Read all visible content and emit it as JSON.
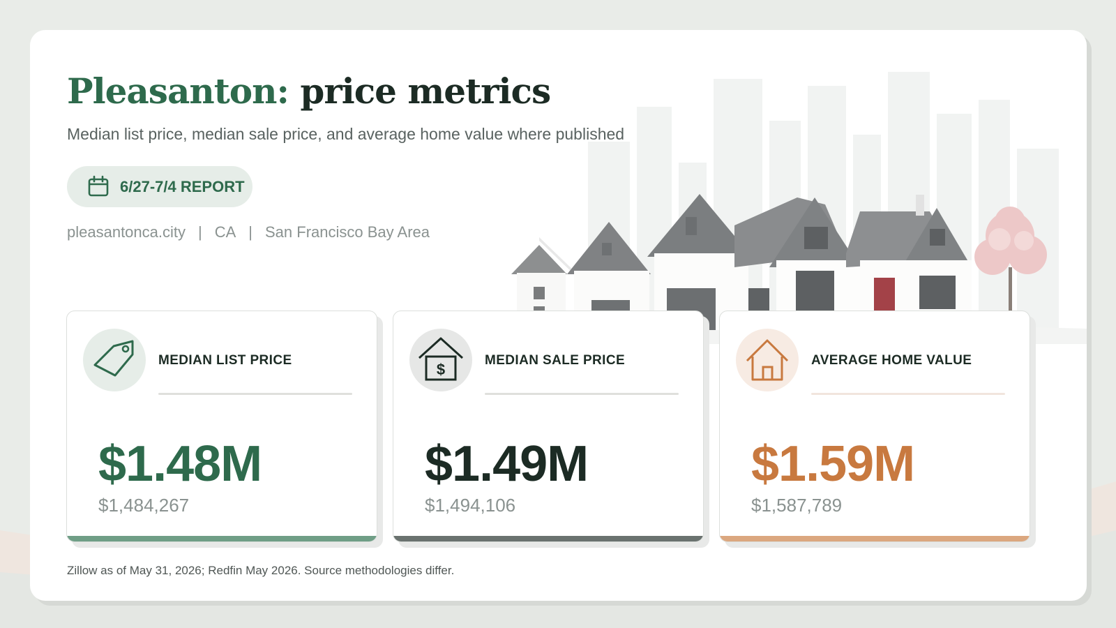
{
  "header": {
    "title_city": "Pleasanton:",
    "title_rest": "price metrics",
    "subtitle": "Median list price, median sale price, and average home value where published"
  },
  "report_badge": {
    "label": "6/27-7/4 REPORT",
    "icon": "calendar-icon"
  },
  "meta": {
    "website": "pleasantonca.city",
    "state": "CA",
    "region": "San Francisco Bay Area",
    "separator": "|"
  },
  "metrics": [
    {
      "label": "MEDIAN LIST PRICE",
      "value": "$1.48M",
      "exact": "$1,484,267",
      "icon": "price-tag-icon",
      "accent": "#2e6a4c",
      "bar_color": "#6f9e86",
      "circle_color": "#e6ede8",
      "rule_color": "#dfe0dc"
    },
    {
      "label": "MEDIAN SALE PRICE",
      "value": "$1.49M",
      "exact": "$1,494,106",
      "icon": "house-dollar-icon",
      "accent": "#1c2b24",
      "bar_color": "#6a726f",
      "circle_color": "#e6e7e6",
      "rule_color": "#dfe0dc"
    },
    {
      "label": "AVERAGE HOME VALUE",
      "value": "$1.59M",
      "exact": "$1,587,789",
      "icon": "house-icon",
      "accent": "#c8793f",
      "bar_color": "#dba77f",
      "circle_color": "#f7ebe3",
      "rule_color": "#f1e5dd"
    }
  ],
  "footnote": "Zillow as of May 31, 2026; Redfin May 2026. Source methodologies differ.",
  "colors": {
    "brand_green": "#2e6a4c",
    "dark": "#1c2b24",
    "orange": "#c8793f",
    "muted": "#8a9290"
  }
}
